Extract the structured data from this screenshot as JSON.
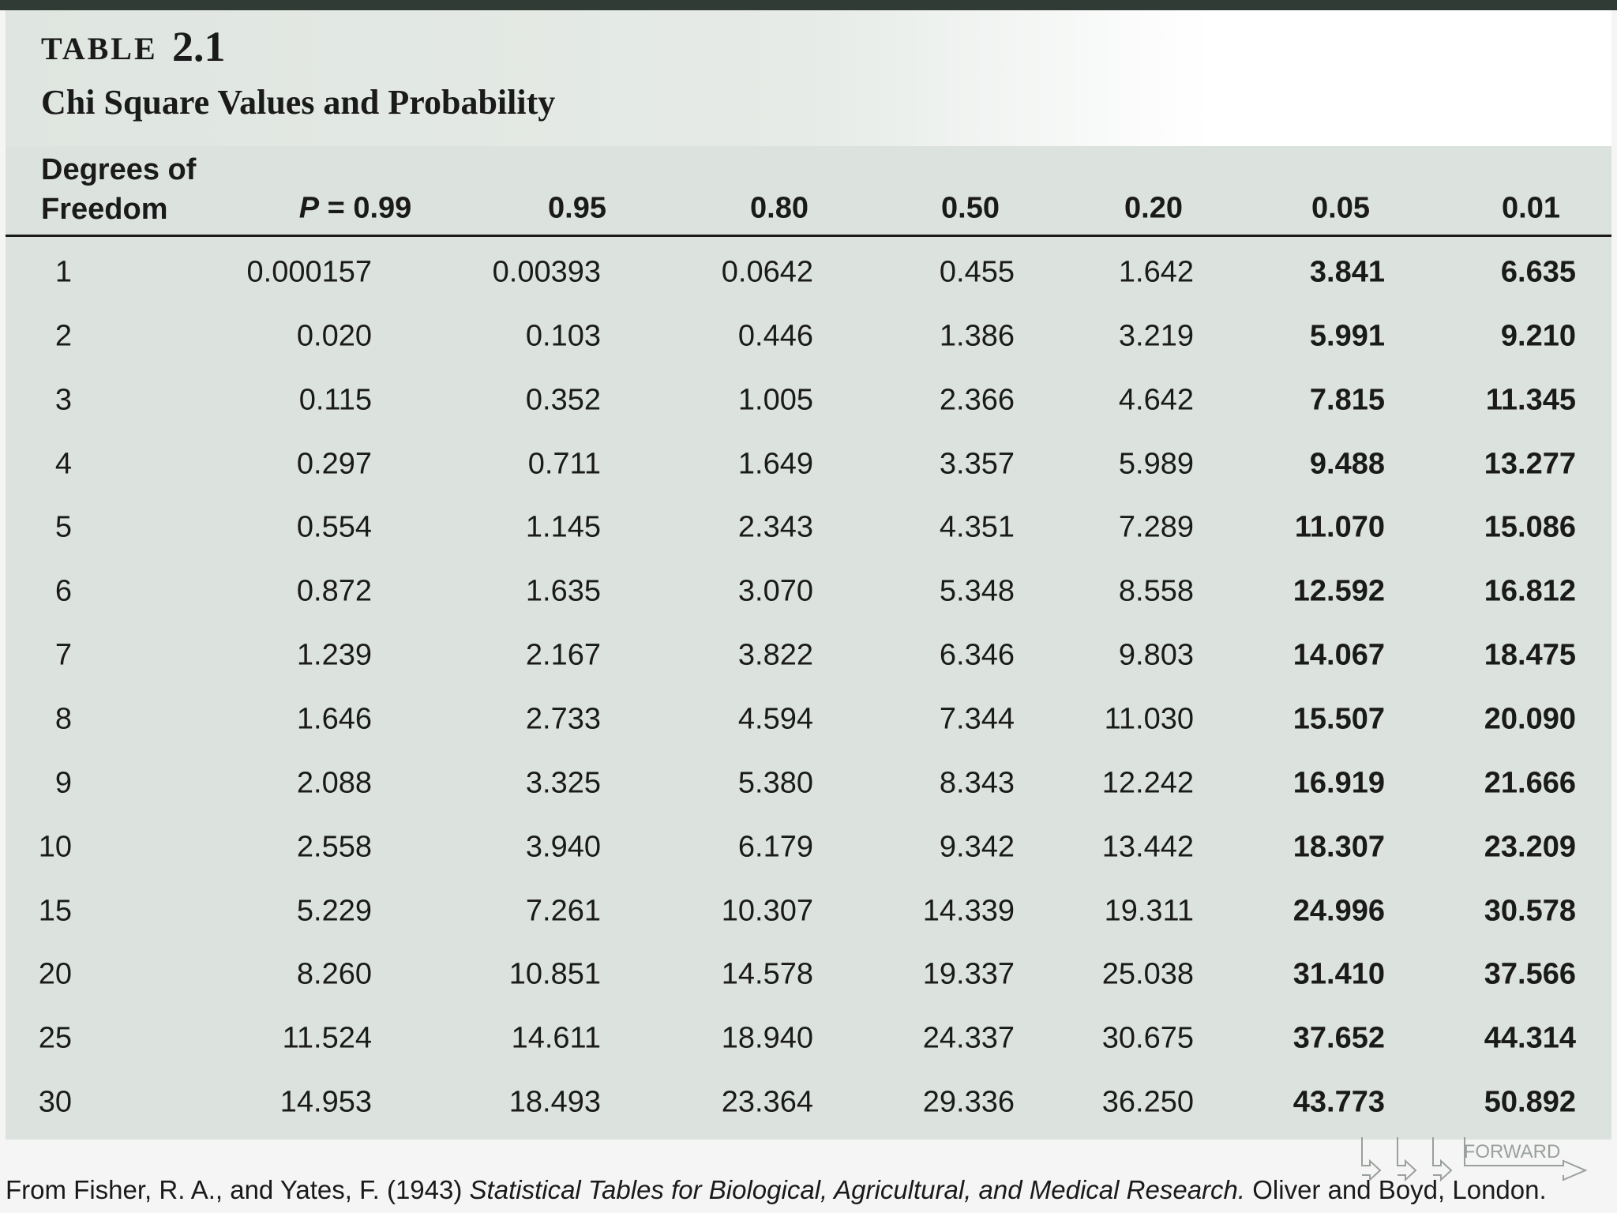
{
  "header": {
    "label": "TABLE",
    "number": "2.1",
    "title": "Chi Square Values and Probability"
  },
  "table": {
    "columns": [
      "Degrees of Freedom",
      "P = 0.99",
      "0.95",
      "0.80",
      "0.50",
      "0.20",
      "0.05",
      "0.01"
    ],
    "rows": [
      [
        "1",
        "0.000157",
        "0.00393",
        "0.0642",
        "0.455",
        "1.642",
        "3.841",
        "6.635"
      ],
      [
        "2",
        "0.020",
        "0.103",
        "0.446",
        "1.386",
        "3.219",
        "5.991",
        "9.210"
      ],
      [
        "3",
        "0.115",
        "0.352",
        "1.005",
        "2.366",
        "4.642",
        "7.815",
        "11.345"
      ],
      [
        "4",
        "0.297",
        "0.711",
        "1.649",
        "3.357",
        "5.989",
        "9.488",
        "13.277"
      ],
      [
        "5",
        "0.554",
        "1.145",
        "2.343",
        "4.351",
        "7.289",
        "11.070",
        "15.086"
      ],
      [
        "6",
        "0.872",
        "1.635",
        "3.070",
        "5.348",
        "8.558",
        "12.592",
        "16.812"
      ],
      [
        "7",
        "1.239",
        "2.167",
        "3.822",
        "6.346",
        "9.803",
        "14.067",
        "18.475"
      ],
      [
        "8",
        "1.646",
        "2.733",
        "4.594",
        "7.344",
        "11.030",
        "15.507",
        "20.090"
      ],
      [
        "9",
        "2.088",
        "3.325",
        "5.380",
        "8.343",
        "12.242",
        "16.919",
        "21.666"
      ],
      [
        "10",
        "2.558",
        "3.940",
        "6.179",
        "9.342",
        "13.442",
        "18.307",
        "23.209"
      ],
      [
        "15",
        "5.229",
        "7.261",
        "10.307",
        "14.339",
        "19.311",
        "24.996",
        "30.578"
      ],
      [
        "20",
        "8.260",
        "10.851",
        "14.578",
        "19.337",
        "25.038",
        "31.410",
        "37.566"
      ],
      [
        "25",
        "11.524",
        "14.611",
        "18.940",
        "24.337",
        "30.675",
        "37.652",
        "44.314"
      ],
      [
        "30",
        "14.953",
        "18.493",
        "23.364",
        "29.336",
        "36.250",
        "43.773",
        "50.892"
      ]
    ]
  },
  "footer": {
    "source_start": "From Fisher, R. A., and Yates, F. (1943)",
    "source_title": "Statistical Tables for Biological, Agricultural, and Medical Research.",
    "source_end": "Oliver and Boyd, London."
  },
  "navigation": {
    "forward": "FORWARD"
  }
}
